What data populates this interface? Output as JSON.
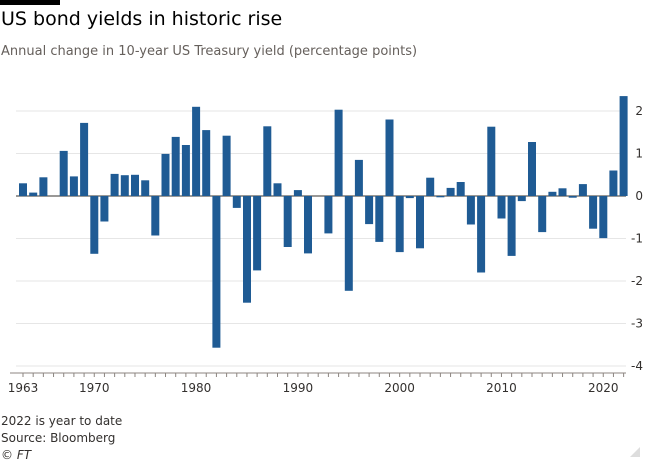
{
  "header": {
    "title": "US bond yields in historic rise",
    "subtitle": "Annual change in 10-year US Treasury yield (percentage points)"
  },
  "footer": {
    "note": "2022 is year to date",
    "source": "Source: Bloomberg",
    "credit": "© FT"
  },
  "colors": {
    "bar": "#1f5b94",
    "grid": "#e6e6e6",
    "zero_line": "#33302e",
    "text": "#33302e"
  },
  "chart_data": {
    "type": "bar",
    "title": "US bond yields in historic rise",
    "subtitle": "Annual change in 10-year US Treasury yield (percentage points)",
    "xlabel": "",
    "ylabel": "",
    "y_axis_position": "right",
    "ylim": [
      -4,
      2.3
    ],
    "yticks": [
      2,
      1,
      0,
      -1,
      -2,
      -3,
      -4
    ],
    "xticks": [
      1963,
      1970,
      1980,
      1990,
      2000,
      2010,
      2020
    ],
    "grid": true,
    "x": [
      1963,
      1964,
      1965,
      1966,
      1967,
      1968,
      1969,
      1970,
      1971,
      1972,
      1973,
      1974,
      1975,
      1976,
      1977,
      1978,
      1979,
      1980,
      1981,
      1982,
      1983,
      1984,
      1985,
      1986,
      1987,
      1988,
      1989,
      1990,
      1991,
      1992,
      1993,
      1994,
      1995,
      1996,
      1997,
      1998,
      1999,
      2000,
      2001,
      2002,
      2003,
      2004,
      2005,
      2006,
      2007,
      2008,
      2009,
      2010,
      2011,
      2012,
      2013,
      2014,
      2015,
      2016,
      2017,
      2018,
      2019,
      2020,
      2021,
      2022
    ],
    "values": [
      0.3,
      0.08,
      0.44,
      0,
      1.06,
      0.46,
      1.72,
      -1.36,
      -0.6,
      0.52,
      0.49,
      0.5,
      0.37,
      -0.93,
      0.99,
      1.39,
      1.2,
      2.1,
      1.55,
      -3.57,
      1.42,
      -0.28,
      -2.51,
      -1.75,
      1.64,
      0.3,
      -1.2,
      0.14,
      -1.35,
      0,
      -0.88,
      2.03,
      -2.23,
      0.85,
      -0.66,
      -1.08,
      1.8,
      -1.32,
      -0.05,
      -1.23,
      0.43,
      -0.03,
      0.19,
      0.33,
      -0.67,
      -1.8,
      1.63,
      -0.53,
      -1.41,
      -0.12,
      1.27,
      -0.85,
      0.1,
      0.18,
      -0.04,
      0.28,
      -0.77,
      -0.99,
      0.6,
      2.35
    ]
  }
}
